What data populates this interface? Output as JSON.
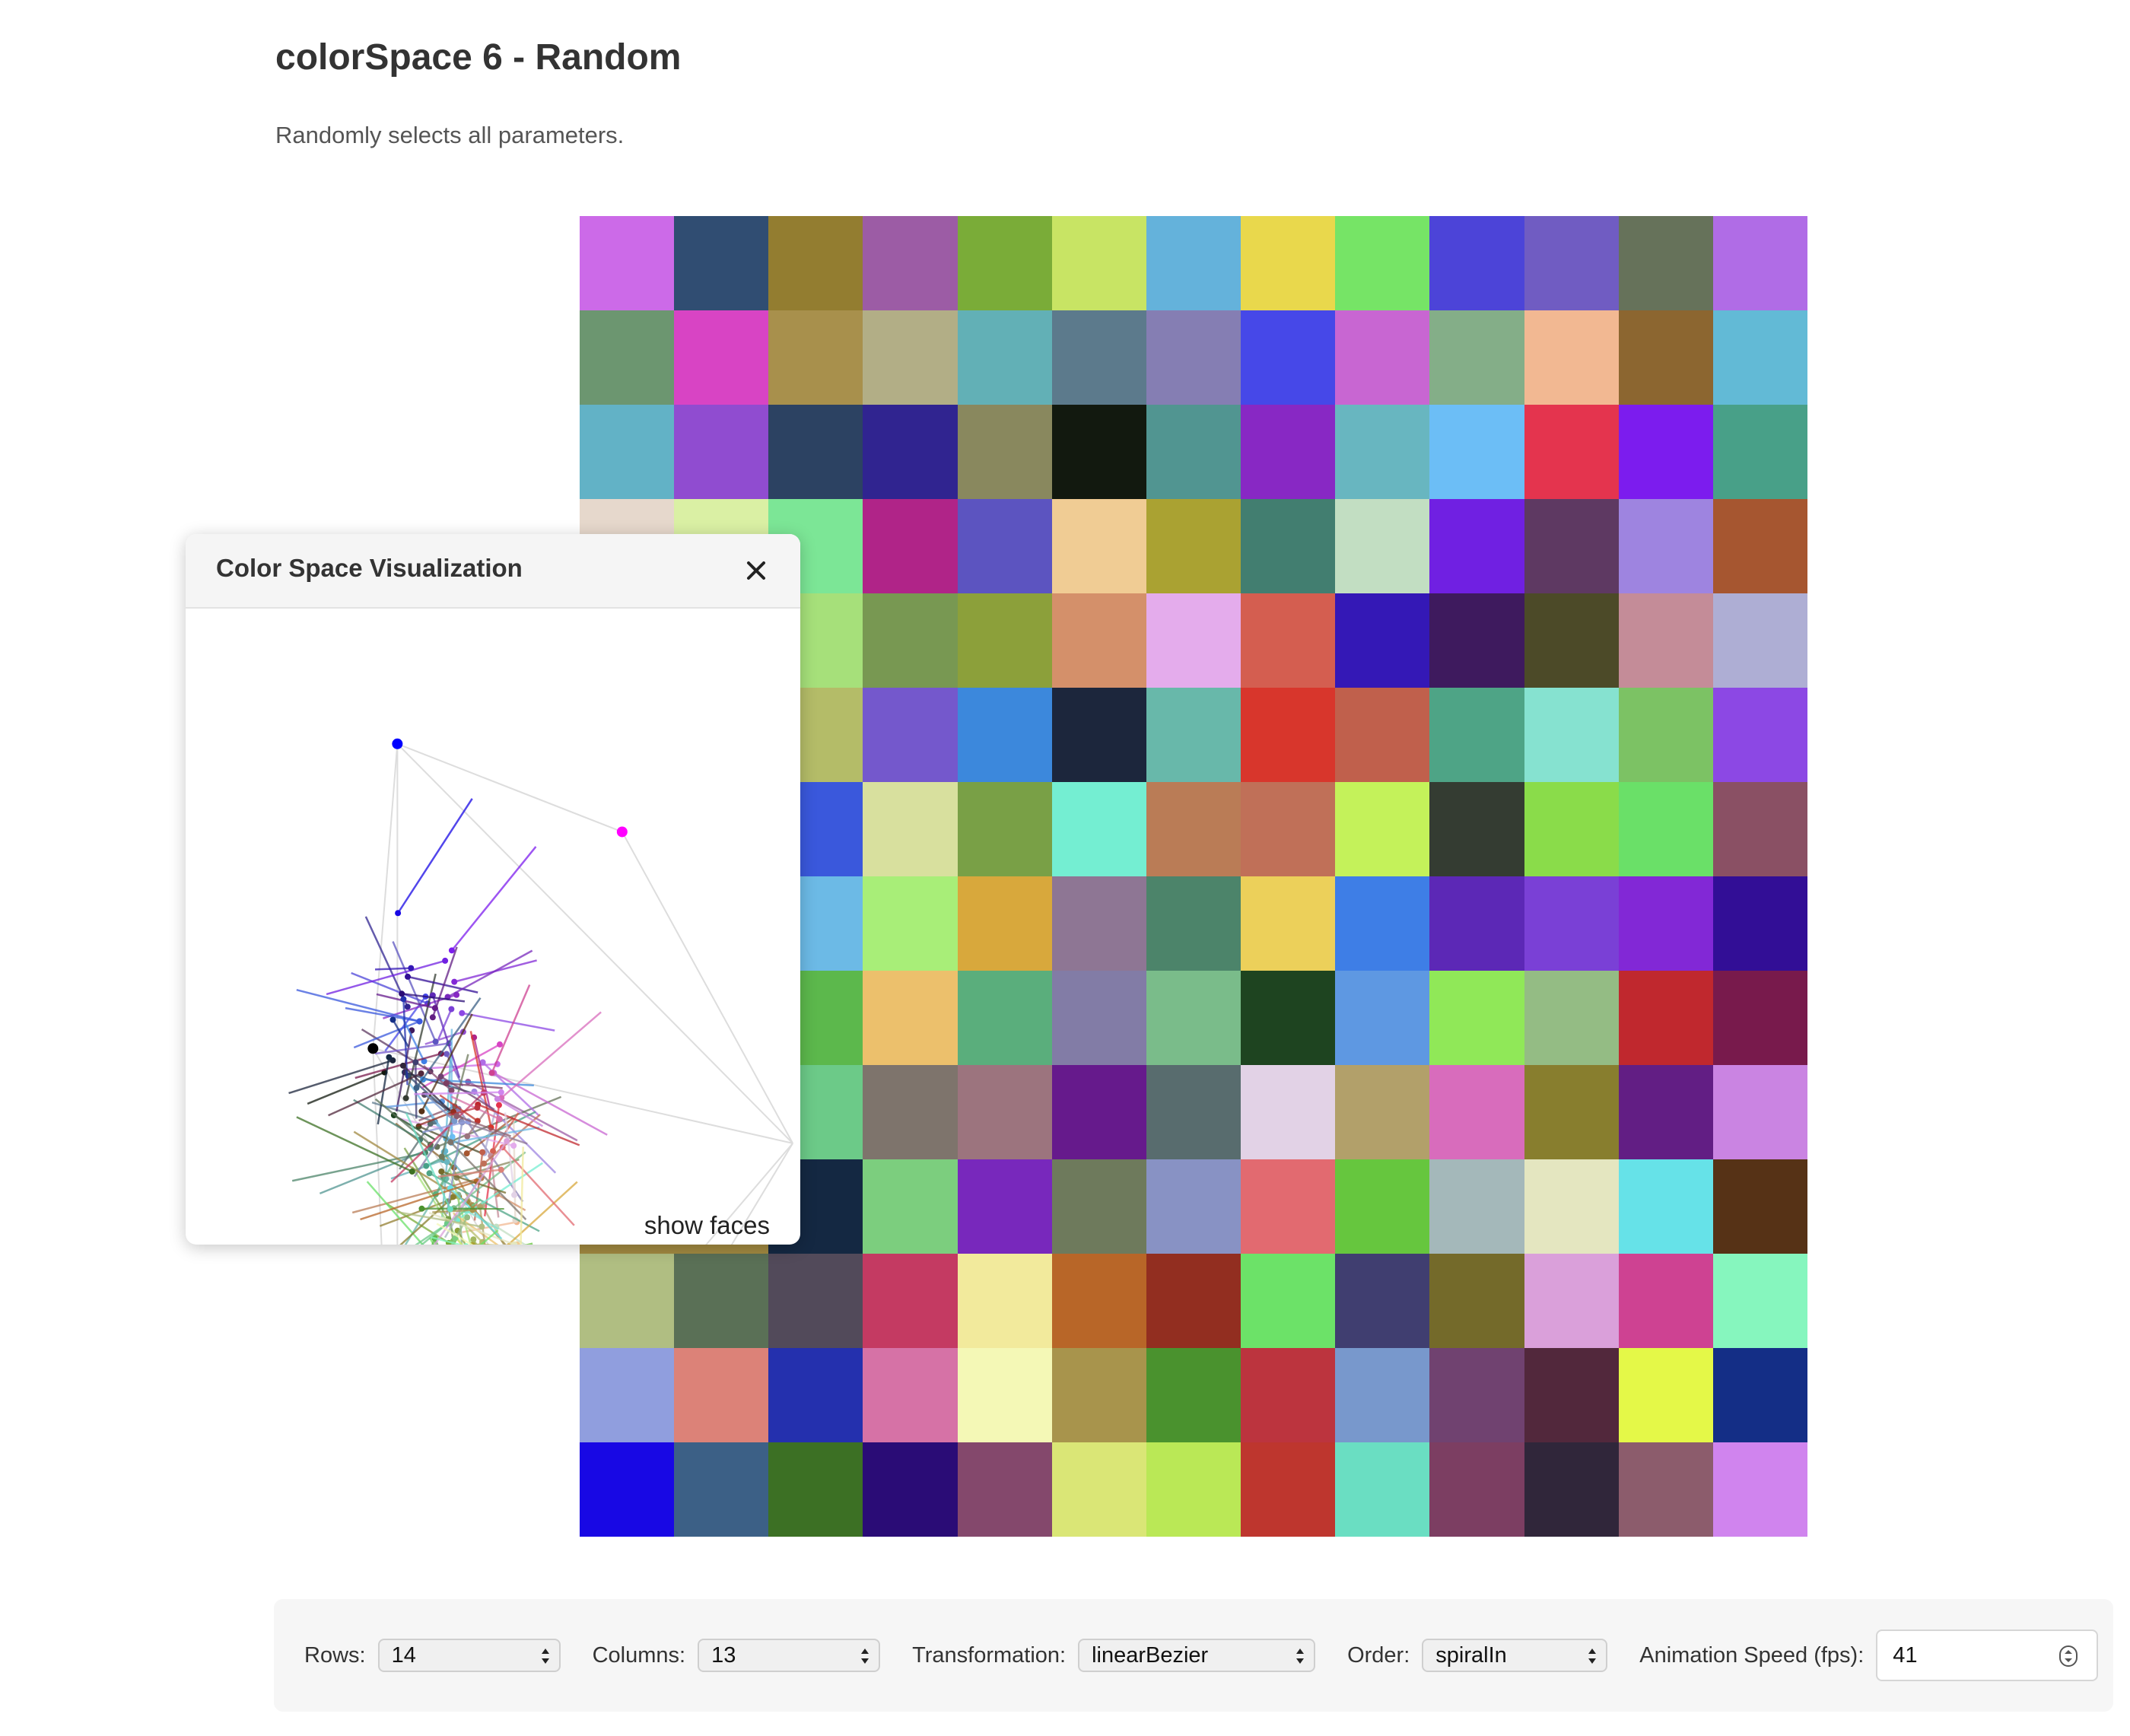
{
  "page": {
    "title": "colorSpace 6 - Random",
    "description": "Randomly selects all parameters."
  },
  "grid": {
    "rows": 14,
    "columns": 13,
    "colors": [
      [
        "#cc6ae8",
        "#304d72",
        "#937d30",
        "#9c5ca5",
        "#7aac38",
        "#c8e464",
        "#64b2db",
        "#e9d84c",
        "#76e466",
        "#4c44d8",
        "#705cc2",
        "#66725a",
        "#b06ce6"
      ],
      [
        "#6c9670",
        "#d844c4",
        "#a8904c",
        "#b2ae86",
        "#62b0b6",
        "#5c7a8c",
        "#857eb3",
        "#4648e8",
        "#c866d2",
        "#84ae88",
        "#f2b892",
        "#8c6630",
        "#62bad6"
      ],
      [
        "#62b2c6",
        "#904cd0",
        "#2c4262",
        "#302490",
        "#89885e",
        "#12190f",
        "#519591",
        "#8828c4",
        "#68b6c0",
        "#6cbef6",
        "#e4344e",
        "#7c1cee",
        "#48a088"
      ],
      [
        "#e6d8cc",
        "#daf0a4",
        "#7ce696",
        "#b02488",
        "#5c54c0",
        "#f0cc94",
        "#aaa232",
        "#427e70",
        "#c2dec2",
        "#7020e2",
        "#5e3962",
        "#9e84e0",
        "#a65630"
      ],
      [
        "#e0d39a",
        "#a6e07a",
        "#a6e07a",
        "#789852",
        "#8ca03a",
        "#d4906a",
        "#e4acec",
        "#d45e50",
        "#3418b6",
        "#3e1a5e",
        "#4c4a28",
        "#c48c98",
        "#aeaed4"
      ],
      [
        "#a4b860",
        "#b4bc68",
        "#b4bc68",
        "#7458cc",
        "#3c88dc",
        "#1c263c",
        "#68b8aa",
        "#d8362c",
        "#c0604c",
        "#4ea486",
        "#86e2d0",
        "#7cc264",
        "#8c48e4"
      ],
      [
        "#3a58dc",
        "#3a58dc",
        "#3a58dc",
        "#d8e09e",
        "#79a046",
        "#74eed2",
        "#ba7c56",
        "#c07058",
        "#c4f25a",
        "#343c32",
        "#8adc4a",
        "#6ae068",
        "#8a5064"
      ],
      [
        "#6cbae6",
        "#6cbae6",
        "#6cbae6",
        "#a8ee78",
        "#d8a83c",
        "#8e7694",
        "#4c846a",
        "#ecd05a",
        "#3e7ee6",
        "#5c28b6",
        "#7a40d6",
        "#8228d6",
        "#320e96"
      ],
      [
        "#5cb84c",
        "#5cb84c",
        "#5cb84c",
        "#ecc06c",
        "#5aae7c",
        "#827ca6",
        "#7abc8a",
        "#1e4420",
        "#5e98e2",
        "#90e858",
        "#94bc84",
        "#c0282e",
        "#781a4c"
      ],
      [
        "#6cca88",
        "#6cca88",
        "#6cca88",
        "#7e746c",
        "#9c747e",
        "#661a8c",
        "#586c6e",
        "#e2d2e6",
        "#b2a06a",
        "#d86cbc",
        "#887e2e",
        "#621e84",
        "#ca84e2"
      ],
      [
        "#a08840",
        "#a08840",
        "#142842",
        "#7cce7e",
        "#7828bc",
        "#6e7a5c",
        "#8892c4",
        "#e26a70",
        "#66c63e",
        "#a4b8ba",
        "#e4e6c0",
        "#66e2e8",
        "#563216"
      ],
      [
        "#b0be82",
        "#5a7056",
        "#524a5a",
        "#c43a62",
        "#f2ea9c",
        "#b86628",
        "#922e20",
        "#6ce268",
        "#403e70",
        "#746a2a",
        "#daa0da",
        "#ce4292",
        "#86f6be"
      ],
      [
        "#909ede",
        "#dc8278",
        "#2430ae",
        "#d672a6",
        "#f4f8b6",
        "#a8944c",
        "#4a922e",
        "#bc343e",
        "#7898cc",
        "#704270",
        "#52283c",
        "#e4f848",
        "#142e86"
      ],
      [
        "#1808e4",
        "#3c6086",
        "#3c7024",
        "#2a0c76",
        "#84486c",
        "#dae676",
        "#bae856",
        "#be362e",
        "#6adec2",
        "#7c3e62",
        "#30263a",
        "#8c5c6c",
        "#d084ee"
      ]
    ]
  },
  "viz_panel": {
    "title": "Color Space Visualization",
    "close_icon": "close-icon",
    "show_faces_label": "show faces",
    "vertex_colors": {
      "blue": "#0000ff",
      "magenta": "#ff00ff",
      "black": "#000000",
      "green": "#44ee33",
      "yellow": "#ffff00",
      "white": "#ffffff"
    }
  },
  "controls": {
    "rows": {
      "label": "Rows:",
      "value": "14"
    },
    "columns": {
      "label": "Columns:",
      "value": "13"
    },
    "transformation": {
      "label": "Transformation:",
      "value": "linearBezier"
    },
    "order": {
      "label": "Order:",
      "value": "spiralIn"
    },
    "speed": {
      "label": "Animation Speed (fps):",
      "value": "41"
    }
  }
}
